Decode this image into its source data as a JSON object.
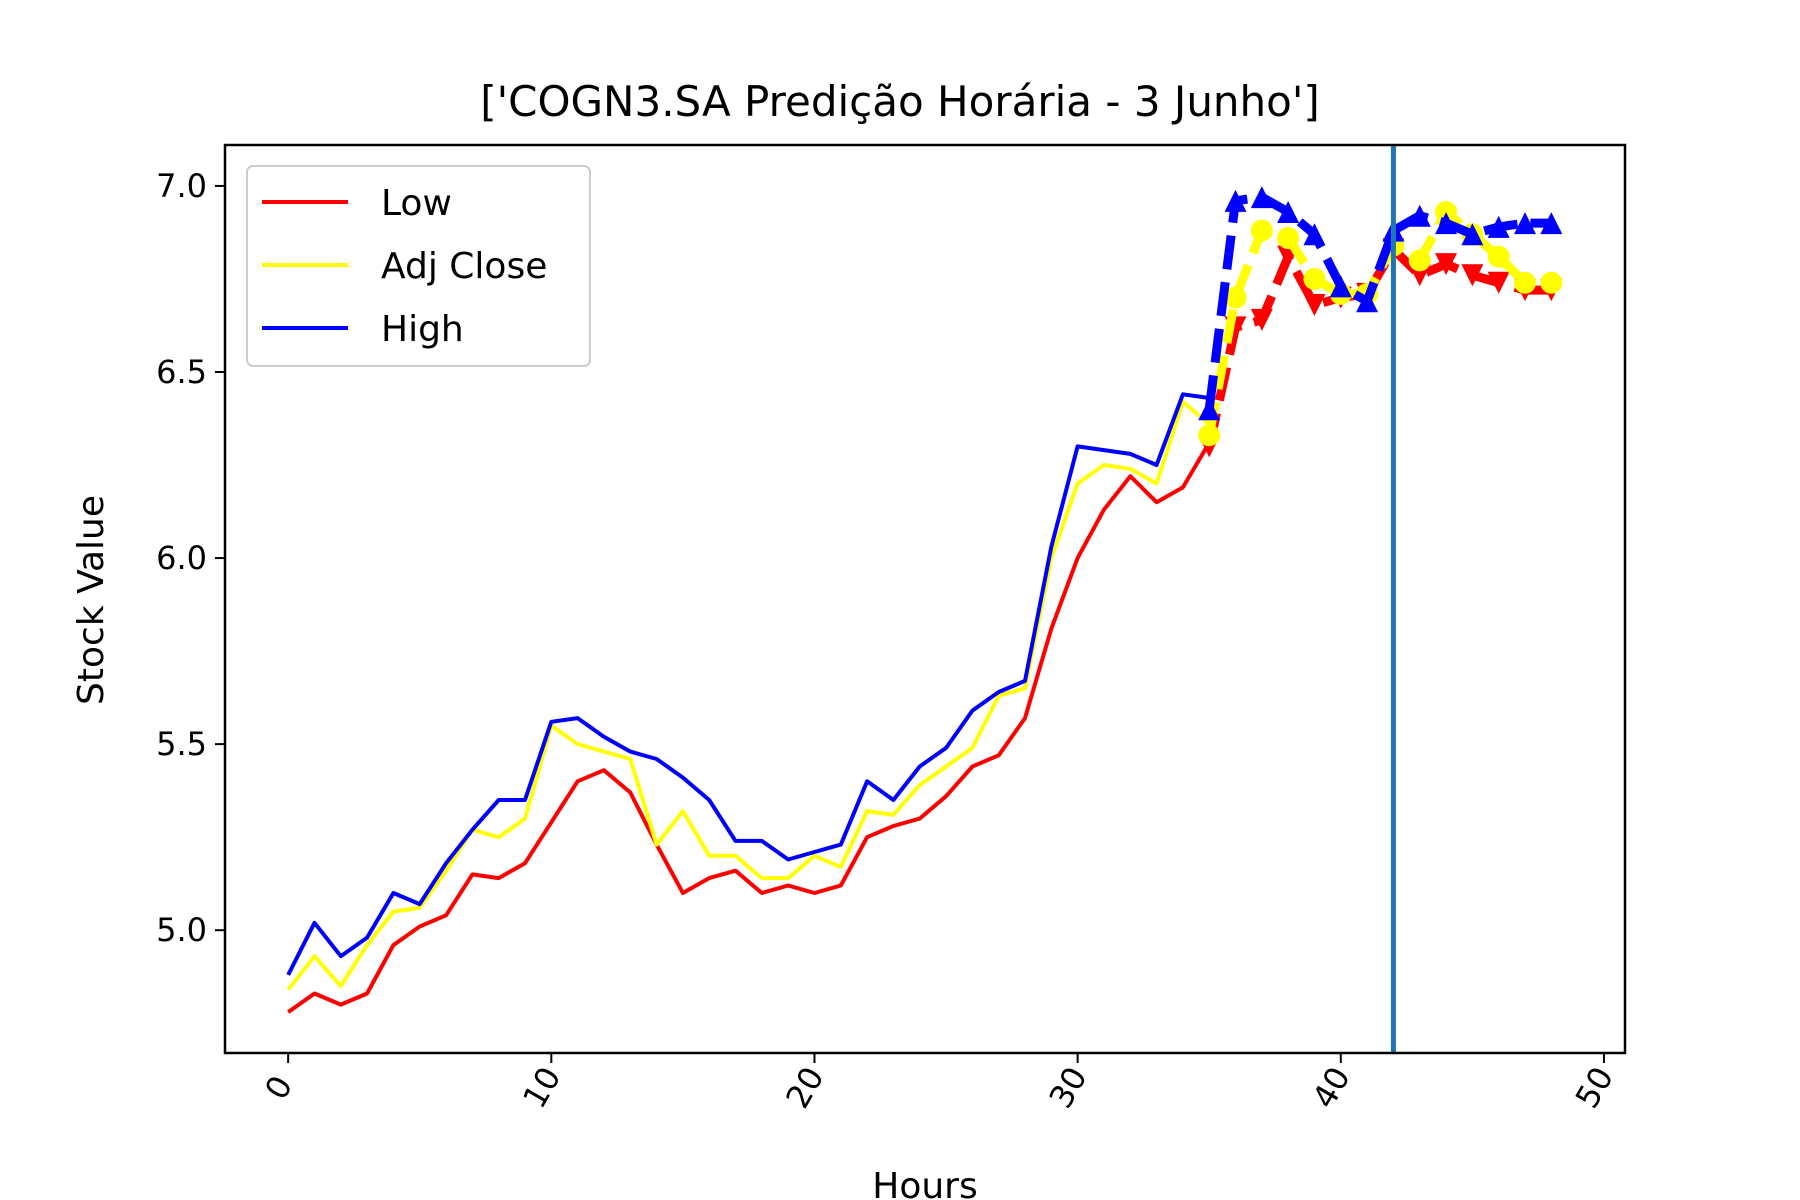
{
  "chart_data": {
    "type": "line",
    "title": "['COGN3.SA Predição Horária - 3 Junho']",
    "xlabel": "Hours",
    "ylabel": "Stock Value",
    "xlim": [
      -2.4,
      50.8
    ],
    "ylim": [
      4.67,
      7.11
    ],
    "xticks": [
      0,
      10,
      20,
      30,
      40,
      50
    ],
    "yticks": [
      5.0,
      5.5,
      6.0,
      6.5,
      7.0
    ],
    "ytick_labels": [
      "5.0",
      "5.5",
      "6.0",
      "6.5",
      "7.0"
    ],
    "grid": false,
    "legend_position": "upper-left",
    "vline_x": 42,
    "vline_color": "#1f77b4",
    "series": [
      {
        "name": "Low",
        "color": "#ff0000",
        "x": [
          0,
          1,
          2,
          3,
          4,
          5,
          6,
          7,
          8,
          9,
          10,
          11,
          12,
          13,
          14,
          15,
          16,
          17,
          18,
          19,
          20,
          21,
          22,
          23,
          24,
          25,
          26,
          27,
          28,
          29,
          30,
          31,
          32,
          33,
          34,
          35
        ],
        "values": [
          4.78,
          4.83,
          4.8,
          4.83,
          4.96,
          5.01,
          5.04,
          5.15,
          5.14,
          5.18,
          5.29,
          5.4,
          5.43,
          5.37,
          5.23,
          5.1,
          5.14,
          5.16,
          5.1,
          5.12,
          5.1,
          5.12,
          5.25,
          5.28,
          5.3,
          5.36,
          5.44,
          5.47,
          5.57,
          5.81,
          6.0,
          6.13,
          6.22,
          6.15,
          6.19,
          6.31
        ]
      },
      {
        "name": "Adj Close",
        "color": "#ffff00",
        "x": [
          0,
          1,
          2,
          3,
          4,
          5,
          6,
          7,
          8,
          9,
          10,
          11,
          12,
          13,
          14,
          15,
          16,
          17,
          18,
          19,
          20,
          21,
          22,
          23,
          24,
          25,
          26,
          27,
          28,
          29,
          30,
          31,
          32,
          33,
          34,
          35
        ],
        "values": [
          4.84,
          4.93,
          4.85,
          4.96,
          5.05,
          5.06,
          5.16,
          5.27,
          5.25,
          5.3,
          5.55,
          5.5,
          5.48,
          5.46,
          5.23,
          5.32,
          5.2,
          5.2,
          5.14,
          5.14,
          5.2,
          5.17,
          5.32,
          5.31,
          5.39,
          5.44,
          5.49,
          5.63,
          5.65,
          6.0,
          6.2,
          6.25,
          6.24,
          6.2,
          6.42,
          6.36
        ]
      },
      {
        "name": "High",
        "color": "#0000ff",
        "x": [
          0,
          1,
          2,
          3,
          4,
          5,
          6,
          7,
          8,
          9,
          10,
          11,
          12,
          13,
          14,
          15,
          16,
          17,
          18,
          19,
          20,
          21,
          22,
          23,
          24,
          25,
          26,
          27,
          28,
          29,
          30,
          31,
          32,
          33,
          34,
          35
        ],
        "values": [
          4.88,
          5.02,
          4.93,
          4.98,
          5.1,
          5.07,
          5.18,
          5.27,
          5.35,
          5.35,
          5.56,
          5.57,
          5.52,
          5.48,
          5.46,
          5.41,
          5.35,
          5.24,
          5.24,
          5.19,
          5.21,
          5.23,
          5.4,
          5.35,
          5.44,
          5.49,
          5.59,
          5.64,
          5.67,
          6.03,
          6.3,
          6.29,
          6.28,
          6.25,
          6.44,
          6.43
        ]
      },
      {
        "name": "",
        "color": "#ff0000",
        "marker": "triangle-down",
        "x": [
          35,
          36,
          37,
          38,
          39,
          40,
          41,
          42,
          43,
          44,
          45,
          46,
          47,
          48
        ],
        "values": [
          6.3,
          6.62,
          6.64,
          6.81,
          6.68,
          6.7,
          6.71,
          6.83,
          6.76,
          6.79,
          6.76,
          6.74,
          6.72,
          6.72
        ]
      },
      {
        "name": "",
        "color": "#ffff00",
        "marker": "circle",
        "x": [
          35,
          36,
          37,
          38,
          39,
          40,
          41,
          42,
          43,
          44,
          45,
          46,
          47,
          48
        ],
        "values": [
          6.33,
          6.7,
          6.88,
          6.86,
          6.75,
          6.71,
          6.71,
          6.84,
          6.8,
          6.93,
          6.87,
          6.81,
          6.74,
          6.74
        ]
      },
      {
        "name": "",
        "color": "#0000ff",
        "marker": "triangle-up",
        "x": [
          35,
          36,
          37,
          38,
          39,
          40,
          41,
          42,
          43,
          44,
          45,
          46,
          47,
          48
        ],
        "values": [
          6.4,
          6.96,
          6.97,
          6.93,
          6.87,
          6.73,
          6.69,
          6.88,
          6.92,
          6.9,
          6.87,
          6.89,
          6.9,
          6.9
        ]
      }
    ]
  }
}
